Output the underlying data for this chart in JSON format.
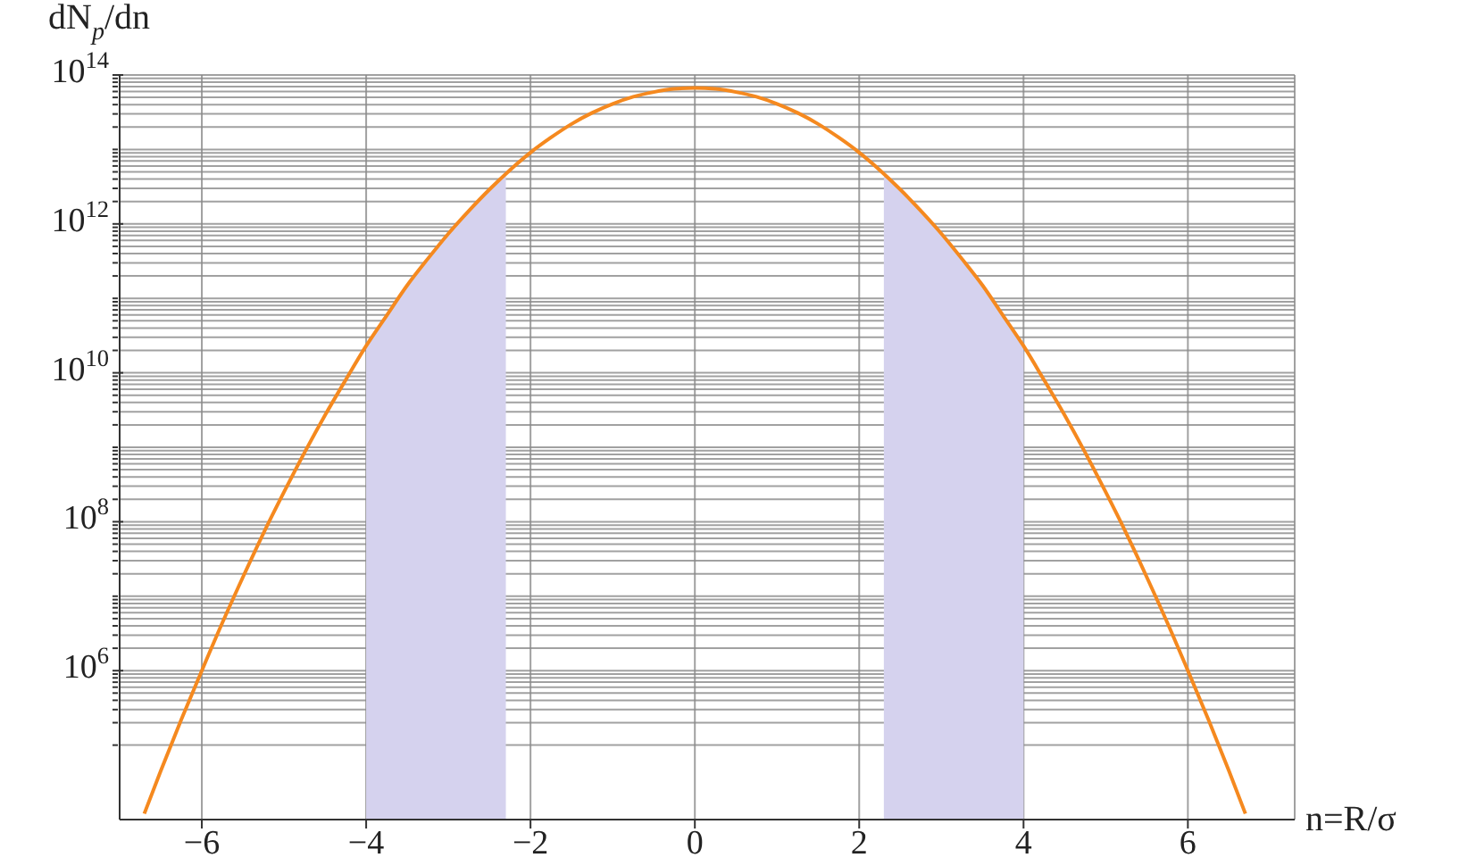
{
  "chart_data": {
    "type": "line",
    "xlabel": "n=R/σ",
    "ylabel": "dN$_{p}$/dn",
    "log": "y",
    "grid": true,
    "line_style": "solid",
    "marker": "none",
    "xlim": [
      -7,
      7.3
    ],
    "xticks": [
      -6,
      -4,
      -2,
      0,
      2,
      4,
      6
    ],
    "ylim": [
      10000.0,
      100000000000000.0
    ],
    "yticks": [
      {
        "value": 100000.0,
        "label": null
      },
      {
        "value": 200000.0,
        "label": null
      },
      {
        "value": 300000.0,
        "label": null
      },
      {
        "value": 400000.0,
        "label": null
      },
      {
        "value": 500000.0,
        "label": null
      },
      {
        "value": 600000.0,
        "label": null
      },
      {
        "value": 700000.0,
        "label": null
      },
      {
        "value": 800000.0,
        "label": null
      },
      {
        "value": 900000.0,
        "label": null
      },
      {
        "value": 1000000.0,
        "label": "10$^{6}$"
      },
      {
        "value": 2000000.0,
        "label": null
      },
      {
        "value": 3000000.0,
        "label": null
      },
      {
        "value": 4000000.0,
        "label": null
      },
      {
        "value": 5000000.0,
        "label": null
      },
      {
        "value": 6000000.0,
        "label": null
      },
      {
        "value": 7000000.0,
        "label": null
      },
      {
        "value": 8000000.0,
        "label": null
      },
      {
        "value": 9000000.0,
        "label": null
      },
      {
        "value": 10000000.0,
        "label": null
      },
      {
        "value": 20000000.0,
        "label": null
      },
      {
        "value": 30000000.0,
        "label": null
      },
      {
        "value": 40000000.0,
        "label": null
      },
      {
        "value": 50000000.0,
        "label": null
      },
      {
        "value": 60000000.0,
        "label": null
      },
      {
        "value": 70000000.0,
        "label": null
      },
      {
        "value": 80000000.0,
        "label": null
      },
      {
        "value": 90000000.0,
        "label": null
      },
      {
        "value": 100000000.0,
        "label": "10$^{8}$"
      },
      {
        "value": 200000000.0,
        "label": null
      },
      {
        "value": 300000000.0,
        "label": null
      },
      {
        "value": 400000000.0,
        "label": null
      },
      {
        "value": 500000000.0,
        "label": null
      },
      {
        "value": 600000000.0,
        "label": null
      },
      {
        "value": 700000000.0,
        "label": null
      },
      {
        "value": 800000000.0,
        "label": null
      },
      {
        "value": 900000000.0,
        "label": null
      },
      {
        "value": 1000000000.0,
        "label": null
      },
      {
        "value": 2000000000.0,
        "label": null
      },
      {
        "value": 3000000000.0,
        "label": null
      },
      {
        "value": 4000000000.0,
        "label": null
      },
      {
        "value": 5000000000.0,
        "label": null
      },
      {
        "value": 6000000000.0,
        "label": null
      },
      {
        "value": 7000000000.0,
        "label": null
      },
      {
        "value": 8000000000.0,
        "label": null
      },
      {
        "value": 9000000000.0,
        "label": null
      },
      {
        "value": 10000000000.0,
        "label": "10$^{10}$"
      },
      {
        "value": 20000000000.0,
        "label": null
      },
      {
        "value": 30000000000.0,
        "label": null
      },
      {
        "value": 40000000000.0,
        "label": null
      },
      {
        "value": 50000000000.0,
        "label": null
      },
      {
        "value": 60000000000.0,
        "label": null
      },
      {
        "value": 70000000000.0,
        "label": null
      },
      {
        "value": 80000000000.0,
        "label": null
      },
      {
        "value": 90000000000.0,
        "label": null
      },
      {
        "value": 100000000000.0,
        "label": null
      },
      {
        "value": 200000000000.0,
        "label": null
      },
      {
        "value": 300000000000.0,
        "label": null
      },
      {
        "value": 400000000000.0,
        "label": null
      },
      {
        "value": 500000000000.0,
        "label": null
      },
      {
        "value": 600000000000.0,
        "label": null
      },
      {
        "value": 700000000000.0,
        "label": null
      },
      {
        "value": 800000000000.0,
        "label": null
      },
      {
        "value": 900000000000.0,
        "label": null
      },
      {
        "value": 1000000000000.0,
        "label": "10$^{12}$"
      },
      {
        "value": 2000000000000.0,
        "label": null
      },
      {
        "value": 3000000000000.0,
        "label": null
      },
      {
        "value": 4000000000000.0,
        "label": null
      },
      {
        "value": 5000000000000.0,
        "label": null
      },
      {
        "value": 6000000000000.0,
        "label": null
      },
      {
        "value": 7000000000000.0,
        "label": null
      },
      {
        "value": 8000000000000.0,
        "label": null
      },
      {
        "value": 9000000000000.0,
        "label": null
      },
      {
        "value": 10000000000000.0,
        "label": null
      },
      {
        "value": 20000000000000.0,
        "label": null
      },
      {
        "value": 30000000000000.0,
        "label": null
      },
      {
        "value": 40000000000000.0,
        "label": null
      },
      {
        "value": 50000000000000.0,
        "label": null
      },
      {
        "value": 60000000000000.0,
        "label": null
      },
      {
        "value": 70000000000000.0,
        "label": null
      },
      {
        "value": 80000000000000.0,
        "label": null
      },
      {
        "value": 90000000000000.0,
        "label": null
      },
      {
        "value": 100000000000000.0,
        "label": "10$^{14}$"
      }
    ],
    "series": [
      {
        "type": "area",
        "color": "#d5d2ee",
        "x": [
          -4,
          -3.75,
          -3.5,
          -3.25,
          -3,
          -2.75,
          -2.5,
          -2.3
        ],
        "values": [
          23000000000.0,
          59000000000.0,
          150000000000.0,
          340000000000.0,
          740000000000.0,
          1500000000000.0,
          2900000000000.0,
          4800000000000.0
        ]
      },
      {
        "type": "area",
        "color": "#d5d2ee",
        "x": [
          2.3,
          2.5,
          2.75,
          3,
          3.25,
          3.5,
          3.75,
          4
        ],
        "values": [
          4800000000000.0,
          2900000000000.0,
          1500000000000.0,
          740000000000.0,
          340000000000.0,
          150000000000.0,
          59000000000.0,
          23000000000.0
        ]
      },
      {
        "color": "#f5891f",
        "x": [
          -6.7,
          -6.5,
          -6.25,
          -6,
          -5.75,
          -5.5,
          -5.25,
          -5,
          -4.75,
          -4.5,
          -4.25,
          -4,
          -3.75,
          -3.5,
          -3.25,
          -3,
          -2.75,
          -2.5,
          -2.25,
          -2,
          -1.75,
          -1.5,
          -1.25,
          -1,
          -0.75,
          -0.5,
          -0.25,
          0,
          0.25,
          0.5,
          0.75,
          1,
          1.25,
          1.5,
          1.75,
          2,
          2.25,
          2.5,
          2.75,
          3,
          3.25,
          3.5,
          3.75,
          4,
          4.25,
          4.5,
          4.75,
          5,
          5.25,
          5.5,
          5.75,
          6,
          6.25,
          6.5,
          6.7
        ],
        "values": [
          12000.0,
          45000.0,
          220000.0,
          1000000.0,
          4400000.0,
          18000000.0,
          70000000.0,
          250000000.0,
          850000000.0,
          2700000000.0,
          8000000000.0,
          23000000000.0,
          59000000000.0,
          150000000000.0,
          340000000000.0,
          740000000000.0,
          1500000000000.0,
          2900000000000.0,
          5300000000000.0,
          9100000000000.0,
          14500000000000.0,
          22000000000000.0,
          31000000000000.0,
          41000000000000.0,
          51000000000000.0,
          59000000000000.0,
          65000000000000.0,
          67000000000000.0,
          65000000000000.0,
          59000000000000.0,
          51000000000000.0,
          41000000000000.0,
          31000000000000.0,
          22000000000000.0,
          14500000000000.0,
          9100000000000.0,
          5300000000000.0,
          2900000000000.0,
          1500000000000.0,
          740000000000.0,
          340000000000.0,
          150000000000.0,
          59000000000.0,
          23000000000.0,
          8000000000.0,
          2700000000.0,
          850000000.0,
          250000000.0,
          70000000.0,
          18000000.0,
          4400000.0,
          1000000.0,
          220000.0,
          45000.0,
          12000.0
        ]
      }
    ]
  }
}
